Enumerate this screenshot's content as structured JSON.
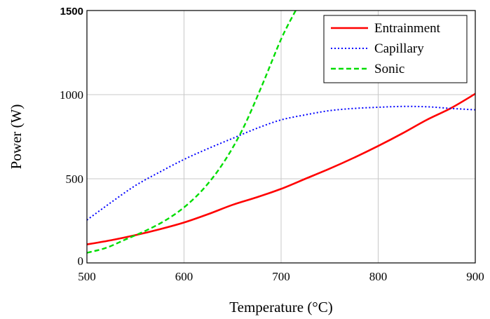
{
  "chart_data": {
    "type": "line",
    "xlabel": "Temperature (°C)",
    "ylabel": "Power (W)",
    "xlim": [
      500,
      900
    ],
    "ylim": [
      0,
      1500
    ],
    "x_ticks": [
      "500",
      "600",
      "700",
      "800",
      "900"
    ],
    "y_ticks": [
      "0",
      "500",
      "1000",
      "1500"
    ],
    "grid": true,
    "legend_position": "top-right",
    "series": [
      {
        "name": "Entrainment",
        "color": "#ff0000",
        "style": "solid",
        "x": [
          500,
          525,
          550,
          575,
          600,
          625,
          650,
          675,
          700,
          725,
          750,
          775,
          800,
          825,
          850,
          875,
          900
        ],
        "y": [
          110,
          135,
          165,
          200,
          240,
          290,
          345,
          390,
          440,
          500,
          560,
          625,
          695,
          770,
          850,
          920,
          1005
        ]
      },
      {
        "name": "Capillary",
        "color": "#0000ff",
        "style": "dotted",
        "x": [
          500,
          525,
          550,
          575,
          600,
          625,
          650,
          675,
          700,
          725,
          750,
          775,
          800,
          825,
          850,
          875,
          900
        ],
        "y": [
          255,
          360,
          460,
          540,
          615,
          680,
          740,
          800,
          850,
          880,
          905,
          918,
          925,
          930,
          928,
          918,
          910
        ]
      },
      {
        "name": "Sonic",
        "color": "#00dd00",
        "style": "dashed",
        "x": [
          500,
          520,
          540,
          560,
          580,
          600,
          620,
          640,
          660,
          680,
          700,
          715
        ],
        "y": [
          60,
          90,
          140,
          190,
          250,
          330,
          440,
          590,
          790,
          1050,
          1330,
          1500
        ]
      }
    ]
  }
}
